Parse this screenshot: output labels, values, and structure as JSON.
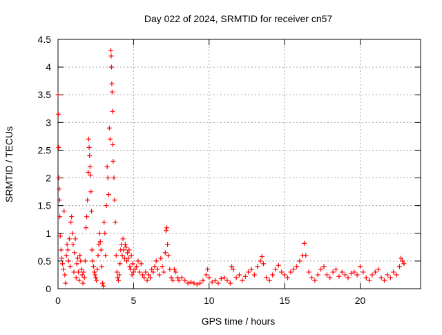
{
  "chart_data": {
    "type": "scatter",
    "title": "Day 022 of 2024, SRMTID for receiver cn57",
    "xlabel": "GPS time / hours",
    "ylabel": "SRMTID / TECUs",
    "xlim": [
      0,
      24
    ],
    "ylim": [
      0,
      4.5
    ],
    "x_ticks": [
      0,
      5,
      10,
      15,
      20
    ],
    "y_ticks": [
      0,
      0.5,
      1,
      1.5,
      2,
      2.5,
      3,
      3.5,
      4,
      4.5
    ],
    "x_tick_labels": [
      "0",
      "5",
      "10",
      "15",
      "20"
    ],
    "y_tick_labels": [
      "0",
      "0.5",
      "1",
      "1.5",
      "2",
      "2.5",
      "3",
      "3.5",
      "4",
      "4.5"
    ],
    "grid": true,
    "marker": "plus",
    "color": "#ff0000",
    "series": [
      {
        "name": "SRMTID",
        "points": [
          [
            0.0,
            3.5
          ],
          [
            0.02,
            3.15
          ],
          [
            0.04,
            2.55
          ],
          [
            0.06,
            2.0
          ],
          [
            0.08,
            1.8
          ],
          [
            0.1,
            1.6
          ],
          [
            0.12,
            1.3
          ],
          [
            0.15,
            0.95
          ],
          [
            0.2,
            0.7
          ],
          [
            0.25,
            0.55
          ],
          [
            0.3,
            0.45
          ],
          [
            0.35,
            0.35
          ],
          [
            0.4,
            1.4
          ],
          [
            0.45,
            0.25
          ],
          [
            0.5,
            0.1
          ],
          [
            0.55,
            0.6
          ],
          [
            0.6,
            0.8
          ],
          [
            0.65,
            0.7
          ],
          [
            0.7,
            0.5
          ],
          [
            0.75,
            0.9
          ],
          [
            0.8,
            0.4
          ],
          [
            0.85,
            1.2
          ],
          [
            0.9,
            1.3
          ],
          [
            0.95,
            1.0
          ],
          [
            1.0,
            0.8
          ],
          [
            1.05,
            0.3
          ],
          [
            1.1,
            0.65
          ],
          [
            1.15,
            0.9
          ],
          [
            1.2,
            0.2
          ],
          [
            1.25,
            0.45
          ],
          [
            1.3,
            0.55
          ],
          [
            1.35,
            0.3
          ],
          [
            1.4,
            0.15
          ],
          [
            1.45,
            0.6
          ],
          [
            1.5,
            0.5
          ],
          [
            1.55,
            0.35
          ],
          [
            1.6,
            0.25
          ],
          [
            1.65,
            0.1
          ],
          [
            1.7,
            0.3
          ],
          [
            1.75,
            0.2
          ],
          [
            1.8,
            0.5
          ],
          [
            1.85,
            1.1
          ],
          [
            1.9,
            1.3
          ],
          [
            1.95,
            1.6
          ],
          [
            2.0,
            2.1
          ],
          [
            2.03,
            2.7
          ],
          [
            2.06,
            2.55
          ],
          [
            2.09,
            2.4
          ],
          [
            2.12,
            2.2
          ],
          [
            2.15,
            2.05
          ],
          [
            2.18,
            1.75
          ],
          [
            2.22,
            1.4
          ],
          [
            2.25,
            0.7
          ],
          [
            2.3,
            0.5
          ],
          [
            2.35,
            0.4
          ],
          [
            2.4,
            0.3
          ],
          [
            2.45,
            0.25
          ],
          [
            2.5,
            0.2
          ],
          [
            2.55,
            0.15
          ],
          [
            2.6,
            0.35
          ],
          [
            2.65,
            0.6
          ],
          [
            2.7,
            0.8
          ],
          [
            2.75,
            1.0
          ],
          [
            2.8,
            0.85
          ],
          [
            2.85,
            0.7
          ],
          [
            2.9,
            0.4
          ],
          [
            2.95,
            0.1
          ],
          [
            3.0,
            0.05
          ],
          [
            3.05,
            1.2
          ],
          [
            3.1,
            1.0
          ],
          [
            3.15,
            0.6
          ],
          [
            3.2,
            1.5
          ],
          [
            3.25,
            2.2
          ],
          [
            3.3,
            2.0
          ],
          [
            3.35,
            1.7
          ],
          [
            3.4,
            2.9
          ],
          [
            3.45,
            2.7
          ],
          [
            3.5,
            4.3
          ],
          [
            3.52,
            4.2
          ],
          [
            3.54,
            4.0
          ],
          [
            3.56,
            3.7
          ],
          [
            3.58,
            3.55
          ],
          [
            3.6,
            3.2
          ],
          [
            3.62,
            2.6
          ],
          [
            3.65,
            2.3
          ],
          [
            3.7,
            2.0
          ],
          [
            3.75,
            1.6
          ],
          [
            3.8,
            1.2
          ],
          [
            3.85,
            0.6
          ],
          [
            3.9,
            0.3
          ],
          [
            3.95,
            0.2
          ],
          [
            4.0,
            0.15
          ],
          [
            4.05,
            0.25
          ],
          [
            4.1,
            0.45
          ],
          [
            4.15,
            0.7
          ],
          [
            4.2,
            0.8
          ],
          [
            4.25,
            0.6
          ],
          [
            4.3,
            0.9
          ],
          [
            4.35,
            0.7
          ],
          [
            4.4,
            0.55
          ],
          [
            4.45,
            0.8
          ],
          [
            4.5,
            0.75
          ],
          [
            4.55,
            0.5
          ],
          [
            4.6,
            0.65
          ],
          [
            4.65,
            0.55
          ],
          [
            4.7,
            0.7
          ],
          [
            4.75,
            0.4
          ],
          [
            4.8,
            0.35
          ],
          [
            4.85,
            0.6
          ],
          [
            4.9,
            0.25
          ],
          [
            4.95,
            0.45
          ],
          [
            5.0,
            0.3
          ],
          [
            5.1,
            0.35
          ],
          [
            5.2,
            0.4
          ],
          [
            5.3,
            0.5
          ],
          [
            5.4,
            0.3
          ],
          [
            5.5,
            0.45
          ],
          [
            5.6,
            0.25
          ],
          [
            5.7,
            0.2
          ],
          [
            5.8,
            0.3
          ],
          [
            5.9,
            0.15
          ],
          [
            6.0,
            0.25
          ],
          [
            6.1,
            0.2
          ],
          [
            6.2,
            0.35
          ],
          [
            6.3,
            0.3
          ],
          [
            6.4,
            0.4
          ],
          [
            6.5,
            0.5
          ],
          [
            6.6,
            0.35
          ],
          [
            6.7,
            0.25
          ],
          [
            6.8,
            0.55
          ],
          [
            6.9,
            0.4
          ],
          [
            7.0,
            0.3
          ],
          [
            7.1,
            0.65
          ],
          [
            7.15,
            1.05
          ],
          [
            7.2,
            1.1
          ],
          [
            7.25,
            0.8
          ],
          [
            7.3,
            0.6
          ],
          [
            7.4,
            0.35
          ],
          [
            7.5,
            0.2
          ],
          [
            7.6,
            0.15
          ],
          [
            7.7,
            0.35
          ],
          [
            7.8,
            0.3
          ],
          [
            7.9,
            0.2
          ],
          [
            8.0,
            0.15
          ],
          [
            8.2,
            0.2
          ],
          [
            8.4,
            0.15
          ],
          [
            8.6,
            0.1
          ],
          [
            8.8,
            0.12
          ],
          [
            9.0,
            0.1
          ],
          [
            9.2,
            0.08
          ],
          [
            9.4,
            0.1
          ],
          [
            9.6,
            0.15
          ],
          [
            9.8,
            0.25
          ],
          [
            9.9,
            0.35
          ],
          [
            10.0,
            0.2
          ],
          [
            10.2,
            0.12
          ],
          [
            10.4,
            0.15
          ],
          [
            10.6,
            0.1
          ],
          [
            10.8,
            0.18
          ],
          [
            11.0,
            0.2
          ],
          [
            11.2,
            0.15
          ],
          [
            11.4,
            0.1
          ],
          [
            11.5,
            0.4
          ],
          [
            11.6,
            0.35
          ],
          [
            11.8,
            0.2
          ],
          [
            12.0,
            0.25
          ],
          [
            12.2,
            0.15
          ],
          [
            12.4,
            0.22
          ],
          [
            12.6,
            0.3
          ],
          [
            12.8,
            0.35
          ],
          [
            13.0,
            0.25
          ],
          [
            13.2,
            0.4
          ],
          [
            13.4,
            0.5
          ],
          [
            13.5,
            0.58
          ],
          [
            13.6,
            0.45
          ],
          [
            13.8,
            0.2
          ],
          [
            14.0,
            0.15
          ],
          [
            14.2,
            0.25
          ],
          [
            14.4,
            0.35
          ],
          [
            14.6,
            0.42
          ],
          [
            14.8,
            0.3
          ],
          [
            15.0,
            0.25
          ],
          [
            15.2,
            0.2
          ],
          [
            15.4,
            0.3
          ],
          [
            15.6,
            0.35
          ],
          [
            15.8,
            0.4
          ],
          [
            16.0,
            0.5
          ],
          [
            16.2,
            0.6
          ],
          [
            16.3,
            0.82
          ],
          [
            16.4,
            0.6
          ],
          [
            16.6,
            0.3
          ],
          [
            16.8,
            0.2
          ],
          [
            17.0,
            0.15
          ],
          [
            17.2,
            0.25
          ],
          [
            17.4,
            0.35
          ],
          [
            17.6,
            0.4
          ],
          [
            17.8,
            0.25
          ],
          [
            18.0,
            0.2
          ],
          [
            18.2,
            0.3
          ],
          [
            18.4,
            0.35
          ],
          [
            18.6,
            0.22
          ],
          [
            18.8,
            0.3
          ],
          [
            19.0,
            0.25
          ],
          [
            19.2,
            0.2
          ],
          [
            19.4,
            0.28
          ],
          [
            19.6,
            0.3
          ],
          [
            19.8,
            0.25
          ],
          [
            20.0,
            0.4
          ],
          [
            20.2,
            0.3
          ],
          [
            20.4,
            0.2
          ],
          [
            20.6,
            0.15
          ],
          [
            20.8,
            0.25
          ],
          [
            21.0,
            0.3
          ],
          [
            21.2,
            0.35
          ],
          [
            21.4,
            0.2
          ],
          [
            21.6,
            0.15
          ],
          [
            21.8,
            0.25
          ],
          [
            22.0,
            0.2
          ],
          [
            22.2,
            0.3
          ],
          [
            22.4,
            0.25
          ],
          [
            22.6,
            0.4
          ],
          [
            22.7,
            0.55
          ],
          [
            22.8,
            0.5
          ],
          [
            22.9,
            0.45
          ]
        ]
      }
    ]
  }
}
